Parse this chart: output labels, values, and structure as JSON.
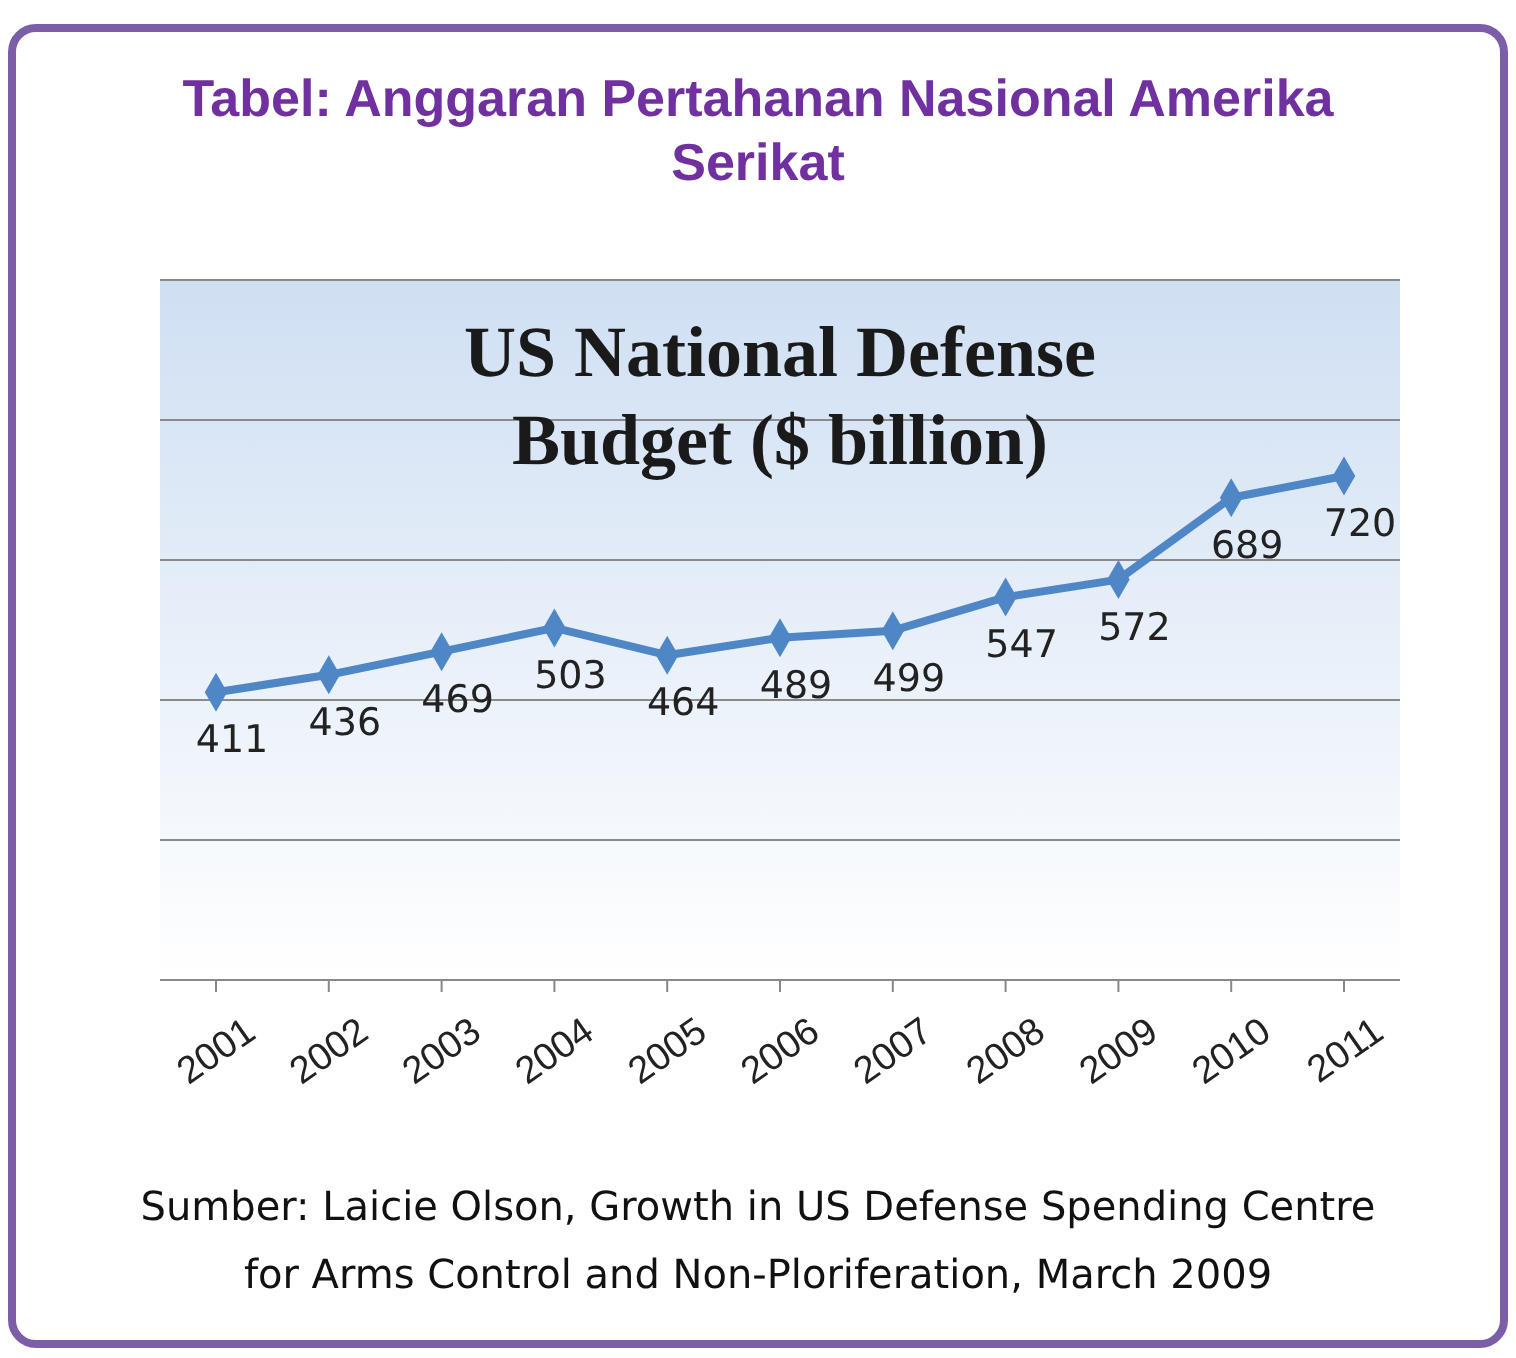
{
  "chart_data": {
    "type": "line",
    "title": "Tabel: Anggaran Pertahanan Nasional Amerika Serikat",
    "subtitle": "US National Defense Budget ($ billion)",
    "annotations": [
      "Sumber: Laicie Olson, Growth in US Defense Spending Centre for Arms Control and Non-Ploriferation, March 2009"
    ],
    "categories": [
      "2001",
      "2002",
      "2003",
      "2004",
      "2005",
      "2006",
      "2007",
      "2008",
      "2009",
      "2010",
      "2011"
    ],
    "series": [
      {
        "color": "#4f86c6",
        "values": [
          411,
          436,
          469,
          503,
          464,
          489,
          499,
          547,
          572,
          689,
          720
        ]
      }
    ],
    "ylim": [
      0,
      1000
    ],
    "yticks": [
      {
        "value": 0,
        "label": null
      },
      {
        "value": 200,
        "label": null
      },
      {
        "value": 400,
        "label": null
      },
      {
        "value": 600,
        "label": null
      },
      {
        "value": 800,
        "label": null
      },
      {
        "value": 1000,
        "label": null
      }
    ],
    "grid": "y",
    "tick_labels": "x",
    "data_labels": true,
    "marker": "diamond",
    "line_style": "solid"
  }
}
